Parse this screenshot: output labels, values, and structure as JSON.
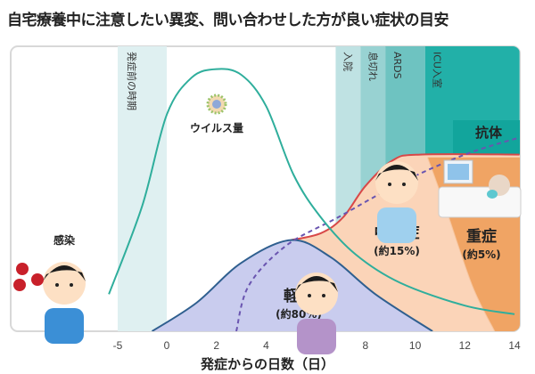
{
  "title": "自宅療養中に注意したい異変、問い合わせした方が良い症状の目安",
  "chart_data": {
    "type": "area",
    "xlabel": "発症からの日数（日）",
    "x_ticks": [
      -5,
      0,
      2,
      4,
      6,
      8,
      10,
      12,
      14
    ],
    "xlim": [
      -6,
      14.2
    ],
    "y_axis": "none (relative level, 0-100)",
    "phases": [
      {
        "label": "発症前の時期",
        "from": -5,
        "to": 0,
        "color": "#dff0f1"
      },
      {
        "label": "入院",
        "from": 6.8,
        "to": 7.8,
        "color": "#bfe2e3"
      },
      {
        "label": "息切れ",
        "from": 7.8,
        "to": 8.8,
        "color": "#98d2d2"
      },
      {
        "label": "ARDS",
        "from": 8.8,
        "to": 10.4,
        "color": "#6ec3c1"
      },
      {
        "label": "ICU入室",
        "from": 10.4,
        "to": 14.2,
        "color": "#22b0a8"
      }
    ],
    "labels": {
      "infection": "感染",
      "virus": "ウイルス量",
      "antibody": "抗体",
      "mild": "軽症",
      "mild_pct": "(約80%)",
      "moderate": "中等症",
      "moderate_pct": "(約15%)",
      "severe": "重症",
      "severe_pct": "(約5%)"
    },
    "series": [
      {
        "name": "ウイルス量",
        "color": "#2fae9c",
        "x": [
          -5.9,
          -2.5,
          0,
          1,
          2,
          3,
          4,
          5.1,
          6.2,
          7.6,
          9.4,
          12,
          14
        ],
        "y": [
          13,
          44,
          76,
          89,
          92,
          90,
          79,
          55,
          40,
          27,
          17,
          9,
          6
        ]
      },
      {
        "name": "軽症",
        "color": "#2f5f8f",
        "fill": "#c9ccee",
        "x": [
          -1.5,
          1.2,
          3,
          5,
          6.6,
          8.4,
          10.7
        ],
        "y": [
          0,
          10,
          24,
          32,
          26,
          13,
          0
        ]
      },
      {
        "name": "中等症",
        "color": "#d84848",
        "fill": "#fbd4b8",
        "x": [
          5,
          6.2,
          7.1,
          8,
          9.1,
          10.2,
          14.2
        ],
        "y": [
          32,
          34.4,
          40,
          51,
          60,
          62,
          62
        ]
      },
      {
        "name": "重症",
        "fill": "#f0a464",
        "x": [
          10.5,
          11.2,
          12.3,
          13.2
        ],
        "y": [
          61,
          44,
          16,
          0
        ]
      },
      {
        "name": "抗体",
        "color": "#6a55b0",
        "dashed": true,
        "x": [
          2.8,
          3.3,
          4.8,
          6.9,
          9.4,
          12,
          14.2
        ],
        "y": [
          0,
          16,
          30,
          40,
          52,
          62,
          68
        ]
      }
    ]
  }
}
